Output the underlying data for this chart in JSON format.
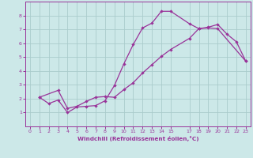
{
  "xlabel": "Windchill (Refroidissement éolien,°C)",
  "bg_color": "#cce8e8",
  "grid_color": "#aacccc",
  "line_color": "#993399",
  "xlim": [
    -0.5,
    23.5
  ],
  "ylim": [
    0,
    9
  ],
  "xticks": [
    0,
    1,
    2,
    3,
    4,
    5,
    6,
    7,
    8,
    9,
    10,
    11,
    12,
    13,
    14,
    15,
    17,
    18,
    19,
    20,
    21,
    22,
    23
  ],
  "yticks": [
    1,
    2,
    3,
    4,
    5,
    6,
    7,
    8
  ],
  "line1_x": [
    1,
    2,
    3,
    4,
    5,
    6,
    7,
    8,
    9,
    10,
    11,
    12,
    13,
    14,
    15,
    17,
    18,
    19,
    20,
    21,
    22,
    23
  ],
  "line1_y": [
    2.1,
    1.65,
    1.9,
    1.0,
    1.4,
    1.45,
    1.5,
    1.85,
    2.95,
    4.5,
    5.9,
    7.1,
    7.45,
    8.3,
    8.3,
    7.4,
    7.05,
    7.15,
    7.35,
    6.65,
    6.1,
    4.7
  ],
  "line2_x": [
    1,
    3,
    4,
    5,
    6,
    7,
    8,
    9,
    10,
    11,
    12,
    13,
    14,
    15,
    17,
    18,
    19,
    20,
    23
  ],
  "line2_y": [
    2.1,
    2.6,
    1.3,
    1.45,
    1.8,
    2.1,
    2.15,
    2.1,
    2.65,
    3.15,
    3.85,
    4.45,
    5.05,
    5.55,
    6.35,
    7.05,
    7.1,
    7.05,
    4.7
  ]
}
